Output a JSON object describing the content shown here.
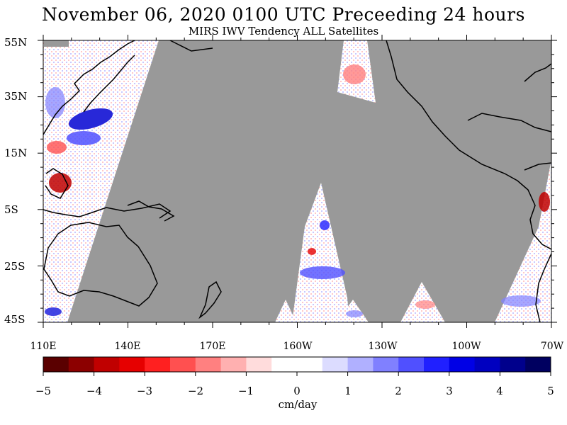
{
  "title": "November 06, 2020  0100 UTC Preceeding 24 hours",
  "subtitle": "MIRS IWV Tendency ALL Satellites",
  "map": {
    "lat_labels": [
      "55N",
      "35N",
      "15N",
      "5S",
      "25S",
      "45S"
    ],
    "lon_labels": [
      "110E",
      "140E",
      "170E",
      "160W",
      "130W",
      "100W",
      "70W"
    ],
    "no_data_color": "#999999",
    "coastline_color": "#000000"
  },
  "colorbar": {
    "units": "cm/day",
    "tick_labels": [
      "−5",
      "−4",
      "−3",
      "−2",
      "−1",
      "0",
      "1",
      "2",
      "3",
      "4",
      "5"
    ],
    "min": -5,
    "max": 5,
    "colors": [
      "#5a0000",
      "#8c0000",
      "#c00000",
      "#e60000",
      "#ff2020",
      "#ff5050",
      "#ff8080",
      "#ffb0b0",
      "#ffdcdc",
      "#ffffff",
      "#ffffff",
      "#dcdcff",
      "#b0b0ff",
      "#8080ff",
      "#5050ff",
      "#2020ff",
      "#0000e6",
      "#0000c0",
      "#00008c",
      "#000060"
    ]
  }
}
